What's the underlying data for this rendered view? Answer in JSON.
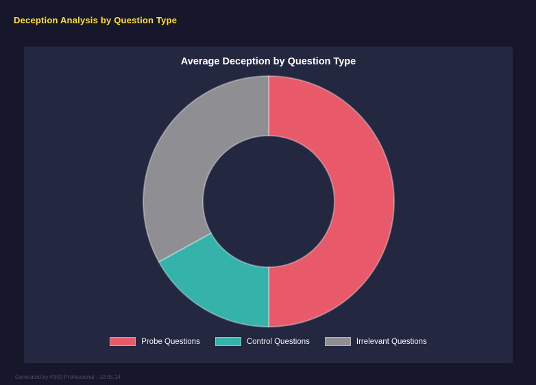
{
  "page": {
    "title": "Deception Analysis by Question Type",
    "footer": "Generated by P300 Professional - 10:05:14"
  },
  "chart_data": {
    "type": "pie",
    "subtype": "donut",
    "title": "Average Deception by Question Type",
    "categories": [
      "Probe Questions",
      "Control Questions",
      "Irrelevant Questions"
    ],
    "values": [
      50,
      17,
      33
    ],
    "unit": "percent (estimated from arc angles, no numeric labels shown)",
    "colors": [
      "#e8596a",
      "#35b3ab",
      "#8e8e93"
    ],
    "border_color": "#ffffff",
    "background": "#232840",
    "legend_position": "bottom",
    "start_angle_deg": 0,
    "direction": "clockwise"
  },
  "theme": {
    "page_background": "#16172a",
    "panel_background": "#232840",
    "accent_yellow": "#ffe135"
  }
}
